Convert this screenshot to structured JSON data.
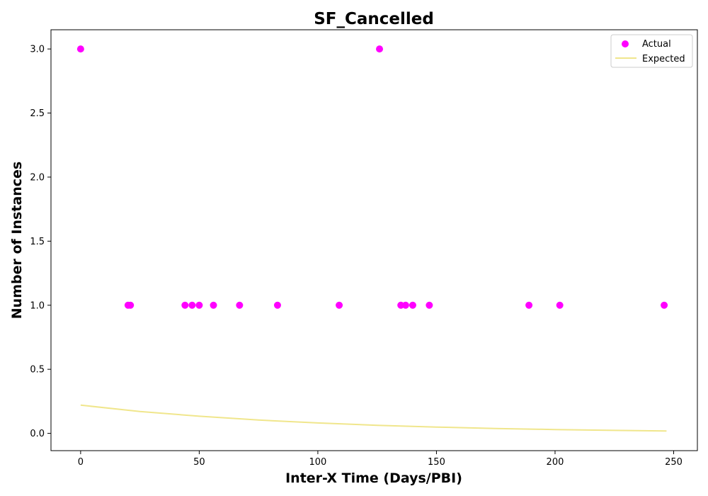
{
  "chart_data": {
    "type": "scatter",
    "title": "SF_Cancelled",
    "xlabel": "Inter-X Time (Days/PBI)",
    "ylabel": "Number of Instances",
    "xlim": [
      -12.5,
      260
    ],
    "ylim": [
      -0.135,
      3.15
    ],
    "x_ticks": [
      0,
      50,
      100,
      150,
      200,
      250
    ],
    "y_ticks": [
      0.0,
      0.5,
      1.0,
      1.5,
      2.0,
      2.5,
      3.0
    ],
    "x_tick_labels": [
      "0",
      "50",
      "100",
      "150",
      "200",
      "250"
    ],
    "y_tick_labels": [
      "0.0",
      "0.5",
      "1.0",
      "1.5",
      "2.0",
      "2.5",
      "3.0"
    ],
    "grid": false,
    "legend_position": "top-right",
    "series": [
      {
        "name": "Actual",
        "kind": "scatter",
        "color": "#ff00ff",
        "x": [
          0,
          20,
          21,
          44,
          47,
          50,
          56,
          67,
          83,
          109,
          126,
          135,
          137,
          140,
          147,
          189,
          202,
          246
        ],
        "y": [
          3,
          1,
          1,
          1,
          1,
          1,
          1,
          1,
          1,
          1,
          3,
          1,
          1,
          1,
          1,
          1,
          1,
          1
        ]
      },
      {
        "name": "Expected",
        "kind": "line",
        "color": "#f0e68c",
        "x": [
          0,
          25,
          50,
          75,
          100,
          125,
          150,
          175,
          200,
          225,
          247
        ],
        "y": [
          0.22,
          0.171,
          0.134,
          0.104,
          0.081,
          0.063,
          0.049,
          0.038,
          0.03,
          0.023,
          0.018
        ]
      }
    ]
  }
}
